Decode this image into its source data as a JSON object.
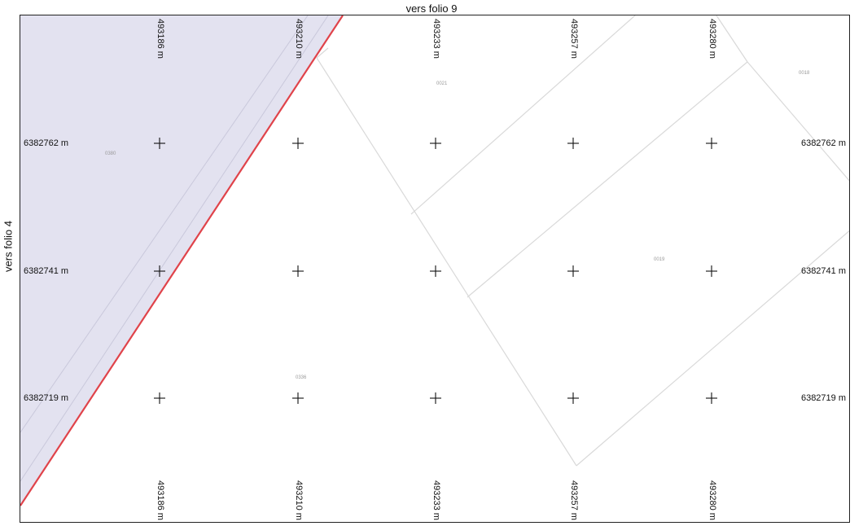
{
  "folio": {
    "top": "vers folio 9",
    "left": "vers folio 4"
  },
  "grid": {
    "x_labels": [
      "493186 m",
      "493210 m",
      "493233 m",
      "493257 m",
      "493280 m"
    ],
    "y_labels": [
      "6382762 m",
      "6382741 m",
      "6382719 m"
    ]
  },
  "parcels": {
    "p0380": "0380",
    "p0021": "0021",
    "p0018": "0018",
    "p0019": "0019",
    "p0336": "0336"
  },
  "colors": {
    "zone_fill": "#e3e2f0",
    "boundary_red": "#e0434a",
    "parcel_line": "#d8d8d8",
    "cross": "#111111"
  }
}
